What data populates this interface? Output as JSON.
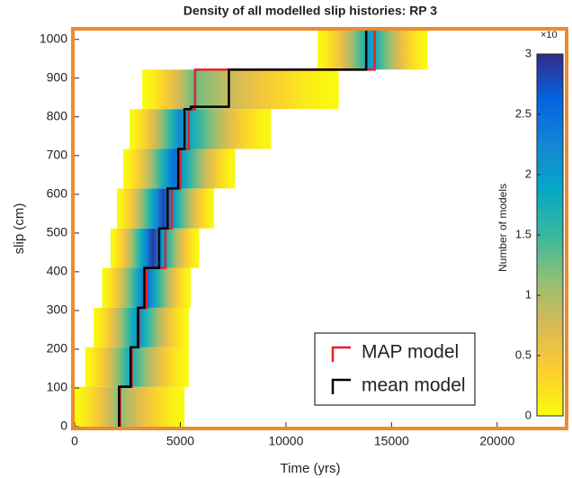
{
  "chart_data": {
    "type": "density-steps",
    "title": "Density of all modelled slip histories: RP 3",
    "x_label": "Time (yrs)",
    "y_label": "slip (cm)",
    "xlim": [
      0,
      23200
    ],
    "xticks": [
      0,
      5000,
      10000,
      15000,
      20000
    ],
    "ylim": [
      0,
      1025
    ],
    "yticks": [
      0,
      100,
      200,
      300,
      400,
      500,
      600,
      700,
      800,
      900,
      1000
    ],
    "colormap": [
      "#f9fb0e",
      "#fcce2e",
      "#d9ba56",
      "#92bf73",
      "#38b99e",
      "#06a7c6",
      "#1485d4",
      "#0363e1",
      "#352a87"
    ],
    "bands": [
      {
        "y0": 0,
        "y1": 103,
        "x0": 0,
        "x1": 5200,
        "peak": 2100,
        "peak_density": 1.2
      },
      {
        "y0": 103,
        "y1": 205,
        "x0": 500,
        "x1": 5400,
        "peak": 2600,
        "peak_density": 1.8
      },
      {
        "y0": 205,
        "y1": 307,
        "x0": 900,
        "x1": 5400,
        "peak": 3000,
        "peak_density": 2.2
      },
      {
        "y0": 307,
        "y1": 410,
        "x0": 1300,
        "x1": 5500,
        "peak": 3400,
        "peak_density": 2.6
      },
      {
        "y0": 410,
        "y1": 512,
        "x0": 1700,
        "x1": 5900,
        "peak": 3700,
        "peak_density": 2.9
      },
      {
        "y0": 512,
        "y1": 615,
        "x0": 2000,
        "x1": 6600,
        "peak": 4200,
        "peak_density": 2.8
      },
      {
        "y0": 615,
        "y1": 717,
        "x0": 2300,
        "x1": 7600,
        "peak": 4700,
        "peak_density": 2.5
      },
      {
        "y0": 717,
        "y1": 820,
        "x0": 2600,
        "x1": 9300,
        "peak": 5000,
        "peak_density": 2.2
      },
      {
        "y0": 820,
        "y1": 922,
        "x0": 3200,
        "x1": 12500,
        "peak": 5600,
        "peak_density": 1.3
      },
      {
        "y0": 922,
        "y1": 1025,
        "x0": 11500,
        "x1": 16700,
        "peak": 14000,
        "peak_density": 2.0
      }
    ],
    "series": [
      {
        "name": "MAP model",
        "color": "#e8202a",
        "x": [
          2150,
          2150,
          2700,
          2700,
          3050,
          3050,
          3400,
          3400,
          4300,
          4300,
          4600,
          4600,
          5000,
          5000,
          5400,
          5400,
          5700,
          5700,
          14200,
          14200
        ],
        "values": [
          0,
          103,
          103,
          205,
          205,
          307,
          307,
          410,
          410,
          512,
          512,
          615,
          615,
          717,
          717,
          820,
          820,
          922,
          922,
          1025
        ]
      },
      {
        "name": "mean model",
        "color": "#000000",
        "x": [
          2100,
          2100,
          2650,
          2650,
          3000,
          3000,
          3300,
          3300,
          4000,
          4000,
          4400,
          4400,
          4900,
          4900,
          5200,
          5200,
          5500,
          5500,
          7300,
          7300,
          13800,
          13800
        ],
        "values": [
          0,
          103,
          103,
          205,
          205,
          307,
          307,
          410,
          410,
          512,
          512,
          615,
          615,
          717,
          717,
          820,
          820,
          826,
          826,
          922,
          922,
          1025
        ]
      }
    ],
    "colorbar": {
      "label": "Number of models",
      "multiplier": "×10",
      "lim": [
        0,
        3
      ],
      "ticks": [
        0,
        0.5,
        1,
        1.5,
        2,
        2.5,
        3
      ]
    }
  }
}
